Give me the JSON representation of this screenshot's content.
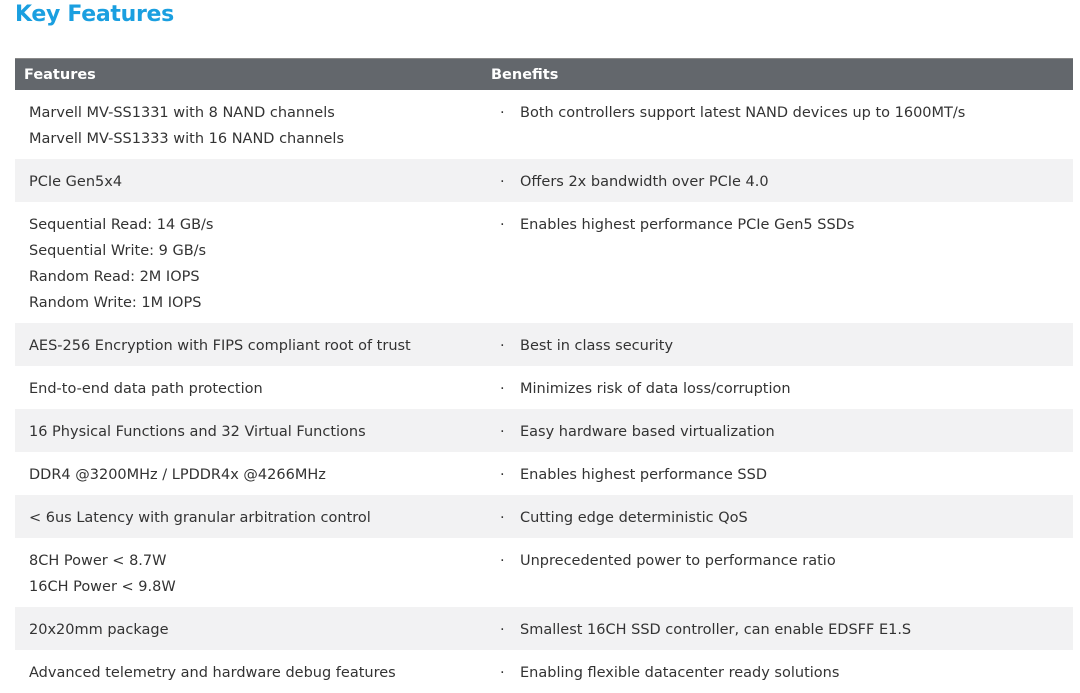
{
  "title": "Key Features",
  "table": {
    "headers": [
      "Features",
      "Benefits"
    ],
    "rows": [
      {
        "features": [
          "Marvell MV-SS1331 with 8 NAND channels",
          "Marvell MV-SS1333 with 16 NAND channels"
        ],
        "benefit": "Both controllers support latest NAND devices up to 1600MT/s"
      },
      {
        "features": [
          "PCIe Gen5x4"
        ],
        "benefit": "Offers 2x bandwidth over PCIe 4.0"
      },
      {
        "features": [
          "Sequential Read: 14 GB/s",
          "Sequential Write: 9 GB/s",
          "Random Read: 2M IOPS",
          "Random Write: 1M IOPS"
        ],
        "benefit": "Enables highest performance PCIe Gen5 SSDs"
      },
      {
        "features": [
          "AES-256 Encryption with FIPS compliant root of trust"
        ],
        "benefit": "Best in class security"
      },
      {
        "features": [
          "End-to-end data path protection"
        ],
        "benefit": "Minimizes risk of data loss/corruption"
      },
      {
        "features": [
          "16 Physical Functions and 32 Virtual Functions"
        ],
        "benefit": "Easy hardware based virtualization"
      },
      {
        "features": [
          "DDR4 @3200MHz / LPDDR4x @4266MHz"
        ],
        "benefit": "Enables highest performance SSD"
      },
      {
        "features": [
          "< 6us Latency with granular arbitration control"
        ],
        "benefit": "Cutting edge deterministic QoS"
      },
      {
        "features": [
          "8CH Power < 8.7W",
          "16CH Power < 9.8W"
        ],
        "benefit": "Unprecedented power to performance ratio"
      },
      {
        "features": [
          "20x20mm package"
        ],
        "benefit": "Smallest 16CH SSD controller, can enable EDSFF E1.S"
      },
      {
        "features": [
          "Advanced telemetry and hardware debug features"
        ],
        "benefit": "Enabling flexible datacenter ready solutions"
      }
    ]
  },
  "bullet": "·",
  "colors": {
    "title": "#1a9fe0",
    "header_bg": "#63676c",
    "alt_row_bg": "#f2f2f3"
  }
}
